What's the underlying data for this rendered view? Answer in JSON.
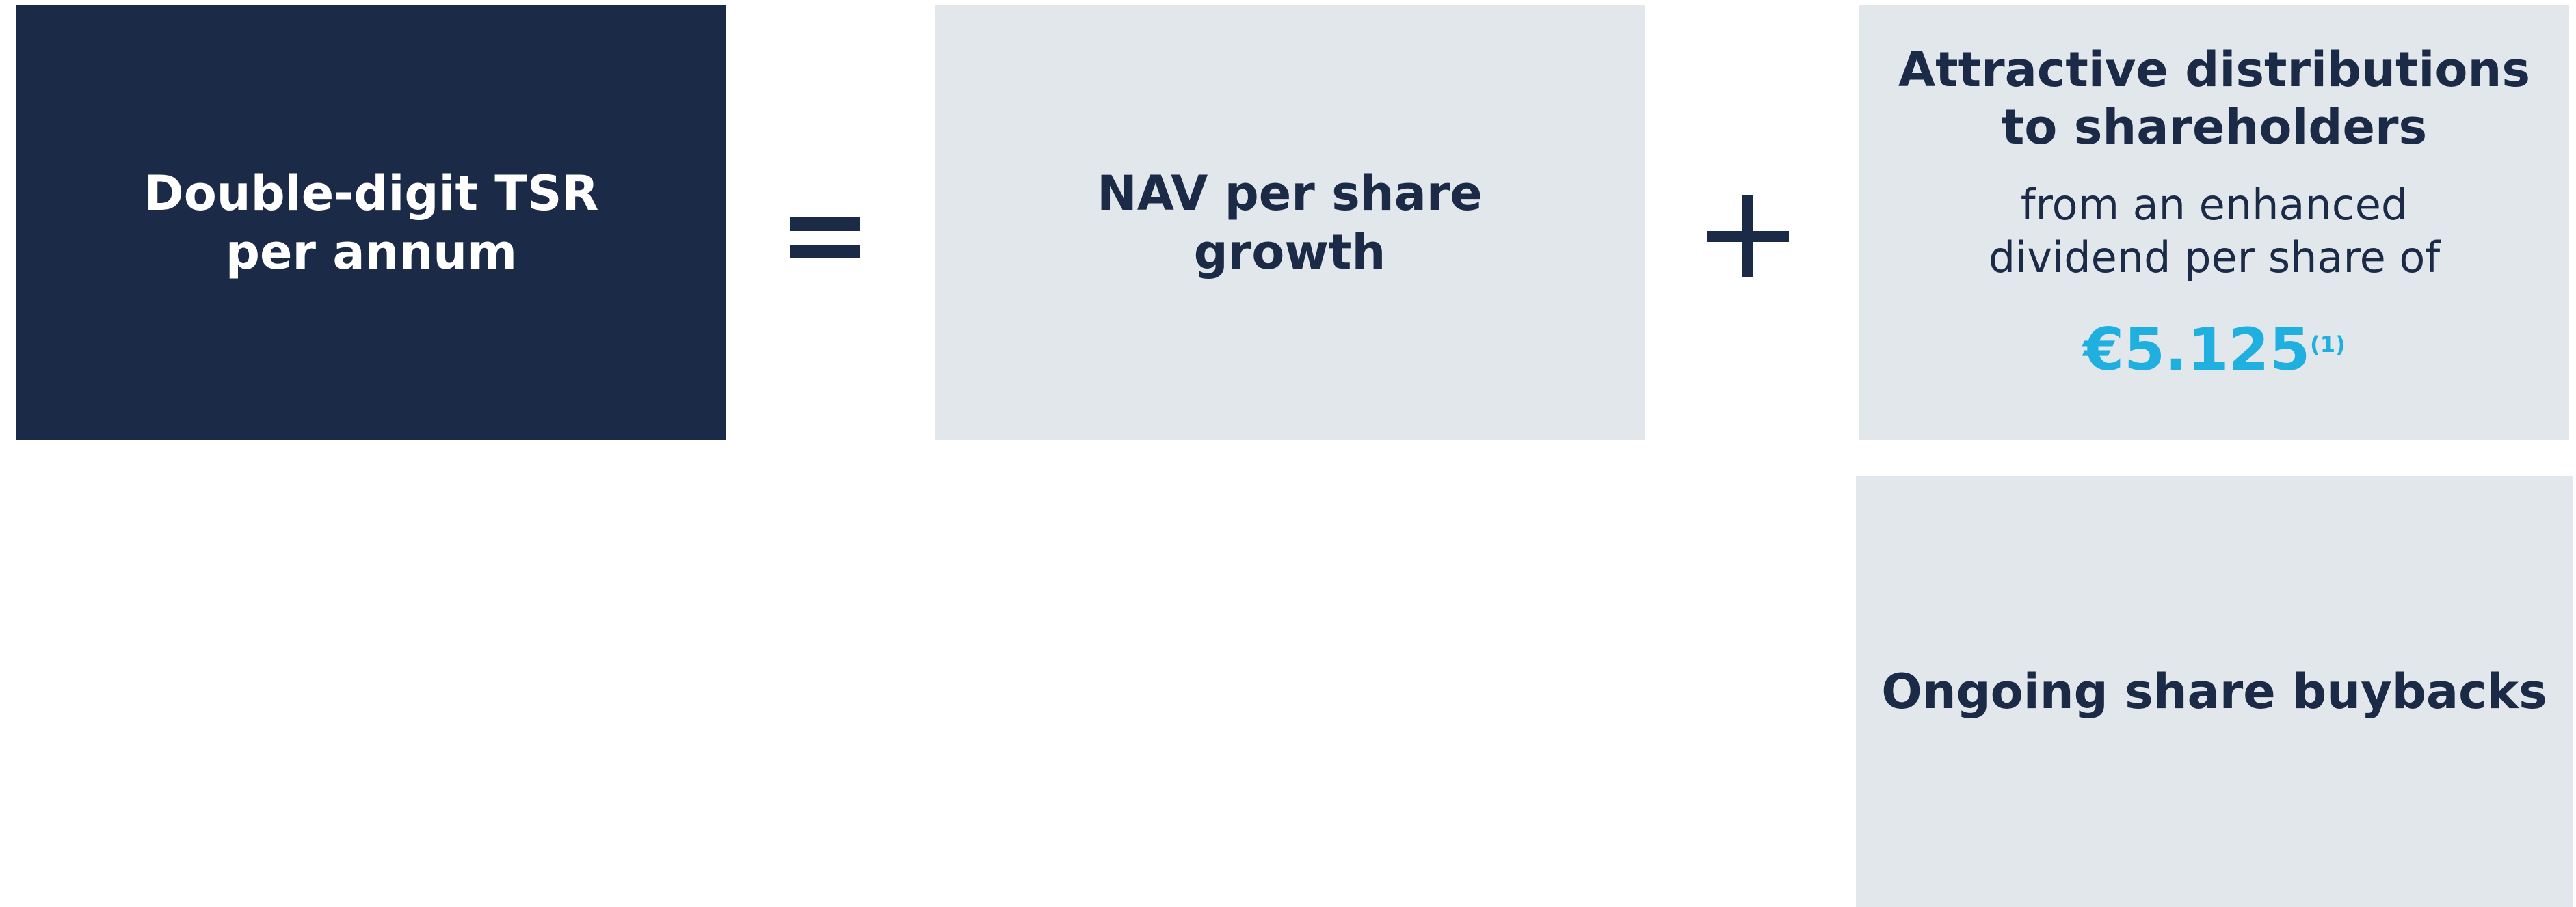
{
  "tsr": {
    "lines": [
      "Double-digit TSR",
      "per annum"
    ]
  },
  "nav": {
    "lines": [
      "NAV per share",
      "growth"
    ]
  },
  "distributions": {
    "title": [
      "Attractive distributions",
      "to shareholders"
    ],
    "subtitle": [
      "from an enhanced",
      "dividend per share of"
    ],
    "value": "€5.125",
    "footnote": "(1)"
  },
  "buybacks": {
    "label": "Ongoing share buybacks"
  }
}
